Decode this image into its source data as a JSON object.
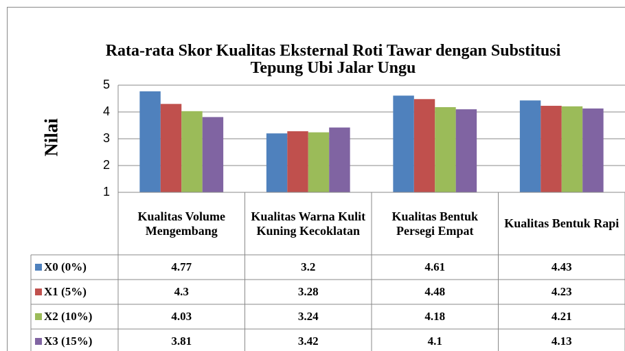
{
  "chart_data": {
    "type": "bar",
    "title": "Rata-rata Skor Kualitas Eksternal Roti Tawar dengan Substitusi Tepung Ubi Jalar Ungu",
    "y_label": "Nilai",
    "categories": [
      "Kualitas Volume Mengembang",
      "Kualitas Warna Kulit Kuning Kecoklatan",
      "Kualitas Bentuk Persegi Empat",
      "Kualitas Bentuk Rapi"
    ],
    "series": [
      {
        "name": "X0 (0%)",
        "color": "#4f81bd",
        "values": [
          4.77,
          3.2,
          4.61,
          4.43
        ]
      },
      {
        "name": "X1 (5%)",
        "color": "#c0504d",
        "values": [
          4.3,
          3.28,
          4.48,
          4.23
        ]
      },
      {
        "name": "X2 (10%)",
        "color": "#9bbb59",
        "values": [
          4.03,
          3.24,
          4.18,
          4.21
        ]
      },
      {
        "name": "X3 (15%)",
        "color": "#8064a2",
        "values": [
          3.81,
          3.42,
          4.1,
          4.13
        ]
      }
    ],
    "ylim": [
      1,
      5
    ],
    "yticks": [
      1,
      2,
      3,
      4,
      5
    ],
    "grid": true
  }
}
